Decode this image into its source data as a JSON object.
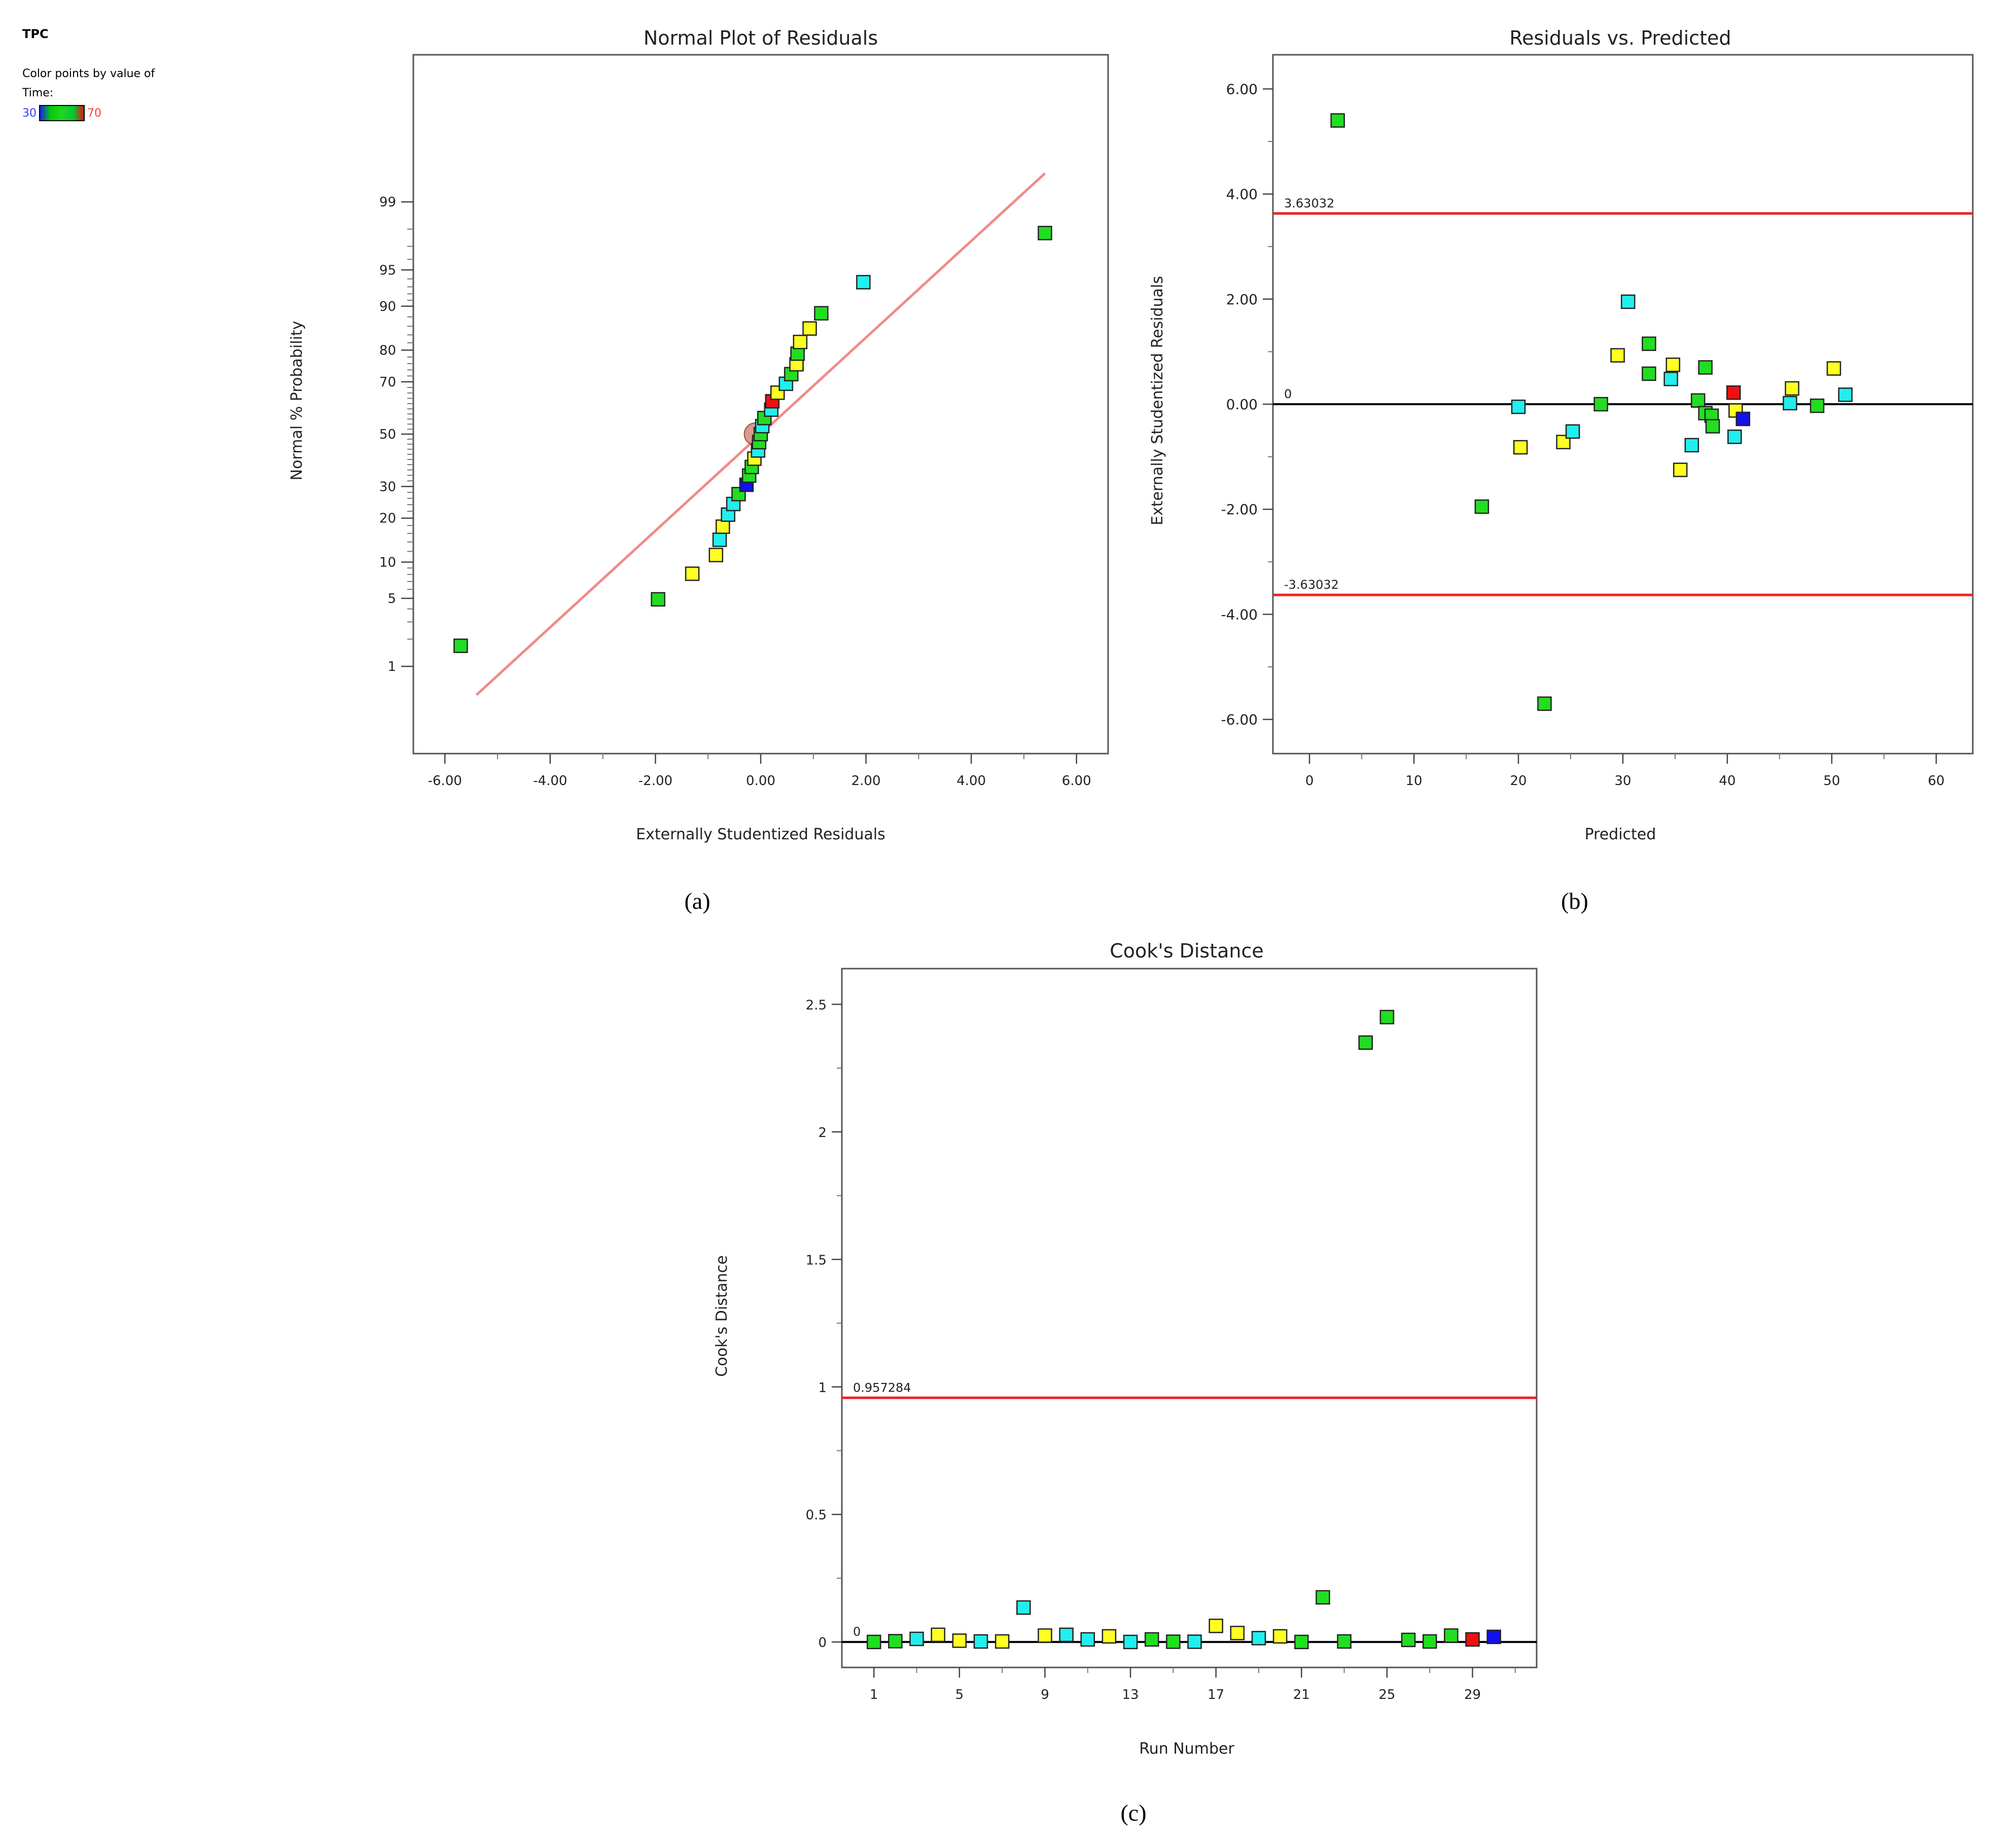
{
  "legend": {
    "heading": "TPC",
    "caption_line1": "Color points by value of",
    "caption_line2": "Time:",
    "min_label": "30",
    "max_label": "70",
    "colors": [
      "#1a1aff",
      "#00d000",
      "#22d422",
      "#00cc33",
      "#e01010"
    ]
  },
  "colors": {
    "green": "#22dd22",
    "cyan": "#22eeee",
    "yellow": "#ffff22",
    "red": "#ee1111",
    "blue": "#1111ee",
    "limit_line": "#ee2222",
    "fit_line": "#f08a8a",
    "zero_line": "#000000",
    "min_label_color": "#3b3bff",
    "max_label_color": "#ff3b3b"
  },
  "captions": {
    "a": "(a)",
    "b": "(b)",
    "c": "(c)"
  },
  "chart_data": [
    {
      "id": "a",
      "type": "scatter",
      "title": "Normal Plot of Residuals",
      "xlabel": "Externally Studentized Residuals",
      "ylabel": "Normal % Probability",
      "xlim": [
        -6.6,
        6.6
      ],
      "ylim_z": [
        -3.2,
        3.8
      ],
      "xticks": [
        -6,
        -4,
        -2,
        0,
        2,
        4,
        6
      ],
      "xtick_labels": [
        "-6.00",
        "-4.00",
        "-2.00",
        "0.00",
        "2.00",
        "4.00",
        "6.00"
      ],
      "ytick_labels": [
        "1",
        "5",
        "10",
        "20",
        "30",
        "50",
        "70",
        "80",
        "90",
        "95",
        "99"
      ],
      "yticks_pct": [
        1,
        5,
        10,
        20,
        30,
        50,
        70,
        80,
        90,
        95,
        99
      ],
      "fit_line": {
        "x": [
          -5.4,
          5.4
        ],
        "p": [
          0.45,
          99.55
        ]
      },
      "mean_marker": {
        "x": -0.1,
        "p": 50
      },
      "points": [
        {
          "x": -5.7,
          "p": 1.7,
          "c": "green"
        },
        {
          "x": -1.95,
          "p": 4.9,
          "c": "green"
        },
        {
          "x": -1.3,
          "p": 8.1,
          "c": "yellow"
        },
        {
          "x": -0.85,
          "p": 11.3,
          "c": "yellow"
        },
        {
          "x": -0.78,
          "p": 14.5,
          "c": "cyan"
        },
        {
          "x": -0.72,
          "p": 17.7,
          "c": "yellow"
        },
        {
          "x": -0.62,
          "p": 21.0,
          "c": "cyan"
        },
        {
          "x": -0.52,
          "p": 24.2,
          "c": "cyan"
        },
        {
          "x": -0.42,
          "p": 27.4,
          "c": "green"
        },
        {
          "x": -0.27,
          "p": 30.6,
          "c": "blue"
        },
        {
          "x": -0.22,
          "p": 33.9,
          "c": "green"
        },
        {
          "x": -0.17,
          "p": 37.1,
          "c": "green"
        },
        {
          "x": -0.12,
          "p": 40.3,
          "c": "yellow"
        },
        {
          "x": -0.05,
          "p": 43.5,
          "c": "cyan"
        },
        {
          "x": -0.03,
          "p": 46.8,
          "c": "green"
        },
        {
          "x": 0.0,
          "p": 50.0,
          "c": "green"
        },
        {
          "x": 0.03,
          "p": 53.2,
          "c": "cyan"
        },
        {
          "x": 0.07,
          "p": 56.4,
          "c": "green"
        },
        {
          "x": 0.2,
          "p": 59.7,
          "c": "cyan"
        },
        {
          "x": 0.22,
          "p": 62.9,
          "c": "red"
        },
        {
          "x": 0.32,
          "p": 66.1,
          "c": "yellow"
        },
        {
          "x": 0.48,
          "p": 69.3,
          "c": "cyan"
        },
        {
          "x": 0.58,
          "p": 72.6,
          "c": "green"
        },
        {
          "x": 0.68,
          "p": 75.8,
          "c": "yellow"
        },
        {
          "x": 0.7,
          "p": 79.0,
          "c": "green"
        },
        {
          "x": 0.75,
          "p": 82.2,
          "c": "yellow"
        },
        {
          "x": 0.93,
          "p": 85.5,
          "c": "yellow"
        },
        {
          "x": 1.15,
          "p": 88.7,
          "c": "green"
        },
        {
          "x": 1.95,
          "p": 93.6,
          "c": "cyan"
        },
        {
          "x": 5.4,
          "p": 97.8,
          "c": "green"
        }
      ]
    },
    {
      "id": "b",
      "type": "scatter",
      "title": "Residuals vs. Predicted",
      "xlabel": "Predicted",
      "ylabel": "Externally Studentized Residuals",
      "xlim": [
        -3.5,
        63.5
      ],
      "ylim": [
        -6.65,
        6.65
      ],
      "xticks": [
        0,
        10,
        20,
        30,
        40,
        50,
        60
      ],
      "xtick_labels": [
        "0",
        "10",
        "20",
        "30",
        "40",
        "50",
        "60"
      ],
      "yticks": [
        6,
        4,
        2,
        0,
        -2,
        -4,
        -6
      ],
      "ytick_labels": [
        "6.00",
        "4.00",
        "2.00",
        "0.00",
        "-2.00",
        "-4.00",
        "-6.00"
      ],
      "upper_limit": 3.63032,
      "upper_label": "3.63032",
      "lower_limit": -3.63032,
      "lower_label": "-3.63032",
      "zero_label": "0",
      "points": [
        {
          "x": 2.7,
          "y": 5.4,
          "c": "green"
        },
        {
          "x": 16.5,
          "y": -1.95,
          "c": "green"
        },
        {
          "x": 20.0,
          "y": -0.05,
          "c": "cyan"
        },
        {
          "x": 20.2,
          "y": -0.82,
          "c": "yellow"
        },
        {
          "x": 22.5,
          "y": -5.7,
          "c": "green"
        },
        {
          "x": 24.3,
          "y": -0.72,
          "c": "yellow"
        },
        {
          "x": 25.2,
          "y": -0.52,
          "c": "cyan"
        },
        {
          "x": 27.9,
          "y": 0.0,
          "c": "green"
        },
        {
          "x": 29.5,
          "y": 0.93,
          "c": "yellow"
        },
        {
          "x": 30.5,
          "y": 1.95,
          "c": "cyan"
        },
        {
          "x": 32.5,
          "y": 1.15,
          "c": "green"
        },
        {
          "x": 32.5,
          "y": 0.58,
          "c": "green"
        },
        {
          "x": 34.6,
          "y": 0.48,
          "c": "cyan"
        },
        {
          "x": 34.8,
          "y": 0.75,
          "c": "yellow"
        },
        {
          "x": 35.5,
          "y": -1.25,
          "c": "yellow"
        },
        {
          "x": 36.6,
          "y": -0.78,
          "c": "cyan"
        },
        {
          "x": 37.2,
          "y": 0.07,
          "c": "green"
        },
        {
          "x": 37.9,
          "y": 0.7,
          "c": "green"
        },
        {
          "x": 37.9,
          "y": -0.17,
          "c": "green"
        },
        {
          "x": 38.5,
          "y": -0.22,
          "c": "green"
        },
        {
          "x": 38.6,
          "y": -0.42,
          "c": "green"
        },
        {
          "x": 40.6,
          "y": 0.22,
          "c": "red"
        },
        {
          "x": 40.7,
          "y": -0.62,
          "c": "cyan"
        },
        {
          "x": 40.8,
          "y": -0.12,
          "c": "yellow"
        },
        {
          "x": 41.5,
          "y": -0.28,
          "c": "blue"
        },
        {
          "x": 46.0,
          "y": 0.02,
          "c": "cyan"
        },
        {
          "x": 46.2,
          "y": 0.3,
          "c": "yellow"
        },
        {
          "x": 48.6,
          "y": -0.03,
          "c": "green"
        },
        {
          "x": 50.2,
          "y": 0.68,
          "c": "yellow"
        },
        {
          "x": 51.3,
          "y": 0.18,
          "c": "cyan"
        }
      ]
    },
    {
      "id": "c",
      "type": "scatter",
      "title": "Cook's Distance",
      "xlabel": "Run Number",
      "ylabel": "Cook's Distance",
      "xlim": [
        -0.5,
        32.0
      ],
      "ylim": [
        -0.1,
        2.64
      ],
      "xticks": [
        1,
        5,
        9,
        13,
        17,
        21,
        25,
        29
      ],
      "xtick_labels": [
        "1",
        "5",
        "9",
        "13",
        "17",
        "21",
        "25",
        "29"
      ],
      "yticks": [
        2.5,
        2.0,
        1.5,
        1.0,
        0.5,
        0.0
      ],
      "ytick_labels": [
        "2.5",
        "2",
        "1.5",
        "1",
        "0.5",
        "0"
      ],
      "limit": 0.957284,
      "limit_label": "0.957284",
      "zero_label": "0",
      "points": [
        {
          "x": 1,
          "y": 0.0,
          "c": "green"
        },
        {
          "x": 2,
          "y": 0.003,
          "c": "green"
        },
        {
          "x": 3,
          "y": 0.012,
          "c": "cyan"
        },
        {
          "x": 4,
          "y": 0.028,
          "c": "yellow"
        },
        {
          "x": 5,
          "y": 0.005,
          "c": "yellow"
        },
        {
          "x": 6,
          "y": 0.002,
          "c": "cyan"
        },
        {
          "x": 7,
          "y": 0.002,
          "c": "yellow"
        },
        {
          "x": 8,
          "y": 0.135,
          "c": "cyan"
        },
        {
          "x": 9,
          "y": 0.025,
          "c": "yellow"
        },
        {
          "x": 10,
          "y": 0.028,
          "c": "cyan"
        },
        {
          "x": 11,
          "y": 0.01,
          "c": "cyan"
        },
        {
          "x": 12,
          "y": 0.022,
          "c": "yellow"
        },
        {
          "x": 13,
          "y": 0.0,
          "c": "cyan"
        },
        {
          "x": 14,
          "y": 0.01,
          "c": "green"
        },
        {
          "x": 15,
          "y": 0.001,
          "c": "green"
        },
        {
          "x": 16,
          "y": 0.001,
          "c": "cyan"
        },
        {
          "x": 17,
          "y": 0.063,
          "c": "yellow"
        },
        {
          "x": 18,
          "y": 0.035,
          "c": "yellow"
        },
        {
          "x": 19,
          "y": 0.015,
          "c": "cyan"
        },
        {
          "x": 20,
          "y": 0.022,
          "c": "yellow"
        },
        {
          "x": 21,
          "y": 0.0,
          "c": "green"
        },
        {
          "x": 22,
          "y": 0.175,
          "c": "green"
        },
        {
          "x": 23,
          "y": 0.002,
          "c": "green"
        },
        {
          "x": 24,
          "y": 2.35,
          "c": "green"
        },
        {
          "x": 25,
          "y": 2.45,
          "c": "green"
        },
        {
          "x": 26,
          "y": 0.008,
          "c": "green"
        },
        {
          "x": 27,
          "y": 0.002,
          "c": "green"
        },
        {
          "x": 28,
          "y": 0.025,
          "c": "green"
        },
        {
          "x": 29,
          "y": 0.01,
          "c": "red"
        },
        {
          "x": 30,
          "y": 0.02,
          "c": "blue"
        }
      ]
    }
  ]
}
